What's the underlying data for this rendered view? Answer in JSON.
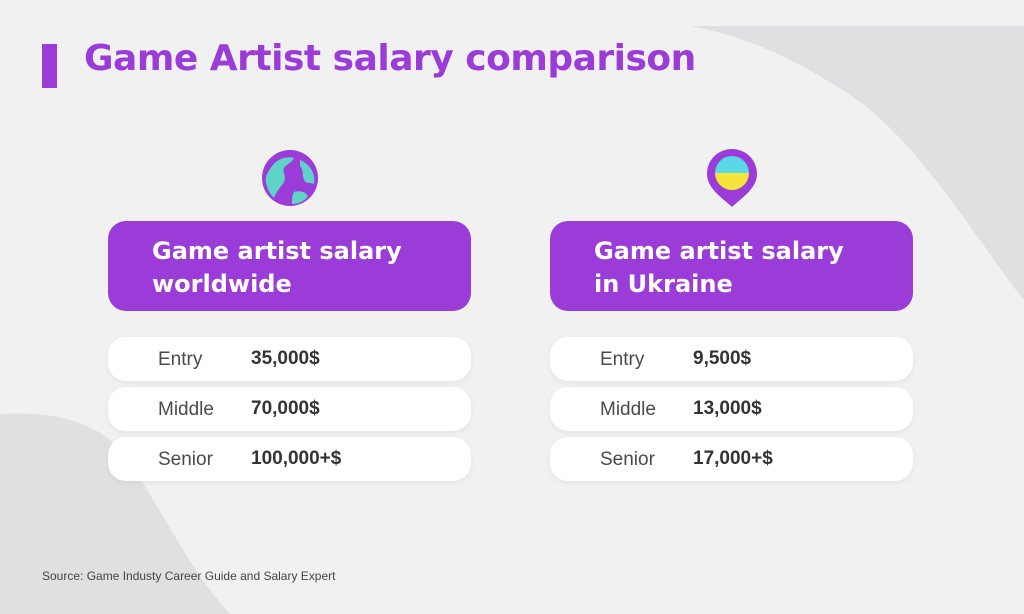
{
  "title": "Game Artist salary comparison",
  "colors": {
    "accent": "#9b3bd8",
    "globe_teal": "#5fd3c8",
    "ukraine_blue": "#5ad8e8",
    "ukraine_yellow": "#f5e53a"
  },
  "cards": [
    {
      "icon": "globe-icon",
      "header_line1": "Game artist salary",
      "header_line2": "worldwide",
      "rows": [
        {
          "level": "Entry",
          "salary": "35,000$"
        },
        {
          "level": "Middle",
          "salary": "70,000$"
        },
        {
          "level": "Senior",
          "salary": "100,000+$"
        }
      ]
    },
    {
      "icon": "ukraine-location-pin-icon",
      "header_line1": "Game artist salary",
      "header_line2": "in Ukraine",
      "rows": [
        {
          "level": "Entry",
          "salary": "9,500$"
        },
        {
          "level": "Middle",
          "salary": "13,000$"
        },
        {
          "level": "Senior",
          "salary": "17,000+$"
        }
      ]
    }
  ],
  "source": "Source: Game Industy Career Guide and Salary Expert"
}
